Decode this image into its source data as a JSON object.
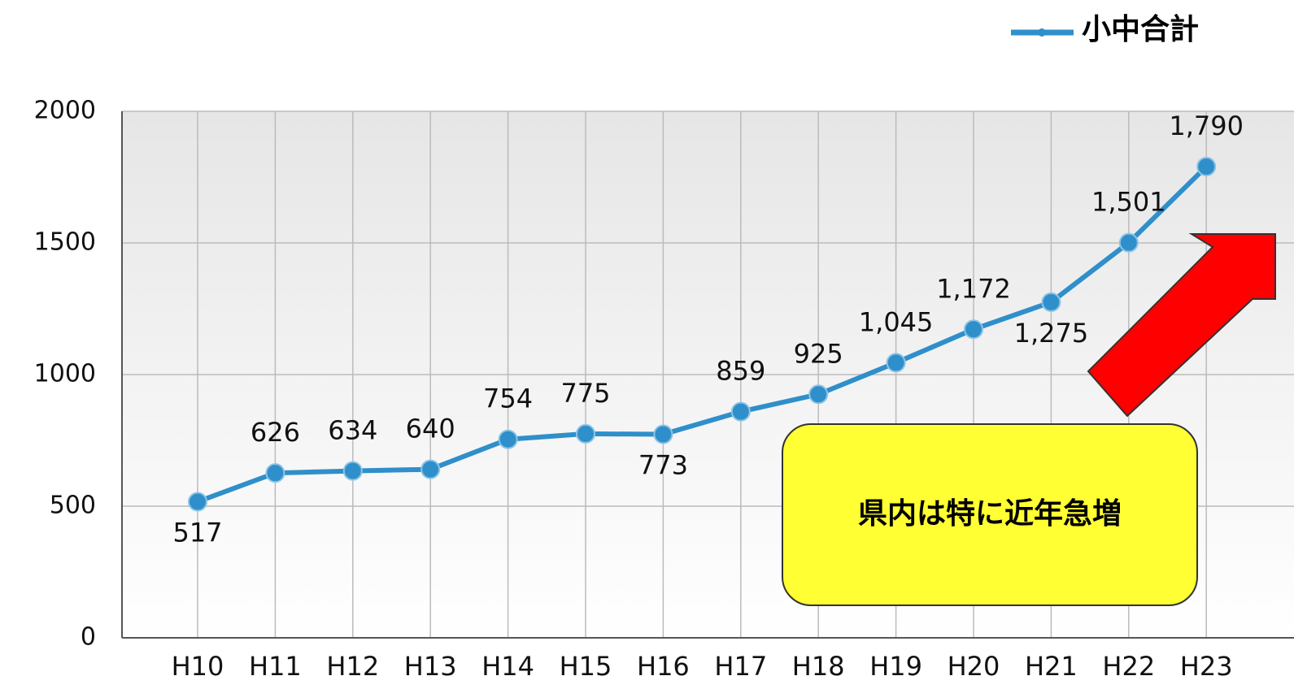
{
  "chart_data": {
    "type": "line",
    "categories": [
      "H10",
      "H11",
      "H12",
      "H13",
      "H14",
      "H15",
      "H16",
      "H17",
      "H18",
      "H19",
      "H20",
      "H21",
      "H22",
      "H23"
    ],
    "series": [
      {
        "name": "小中合計",
        "color": "#2f8fca",
        "values": [
          517,
          626,
          634,
          640,
          754,
          775,
          773,
          859,
          925,
          1045,
          1172,
          1275,
          1501,
          1790
        ],
        "value_labels": [
          "517",
          "626",
          "634",
          "640",
          "754",
          "775",
          "773",
          "859",
          "925",
          "1,045",
          "1,172",
          "1,275",
          "1,501",
          "1,790"
        ]
      }
    ],
    "ylim": [
      0,
      2000
    ],
    "yticks": [
      0,
      500,
      1000,
      1500,
      2000
    ],
    "grid": true,
    "legend": "top-right",
    "annotation": "県内は特に近年急増"
  }
}
